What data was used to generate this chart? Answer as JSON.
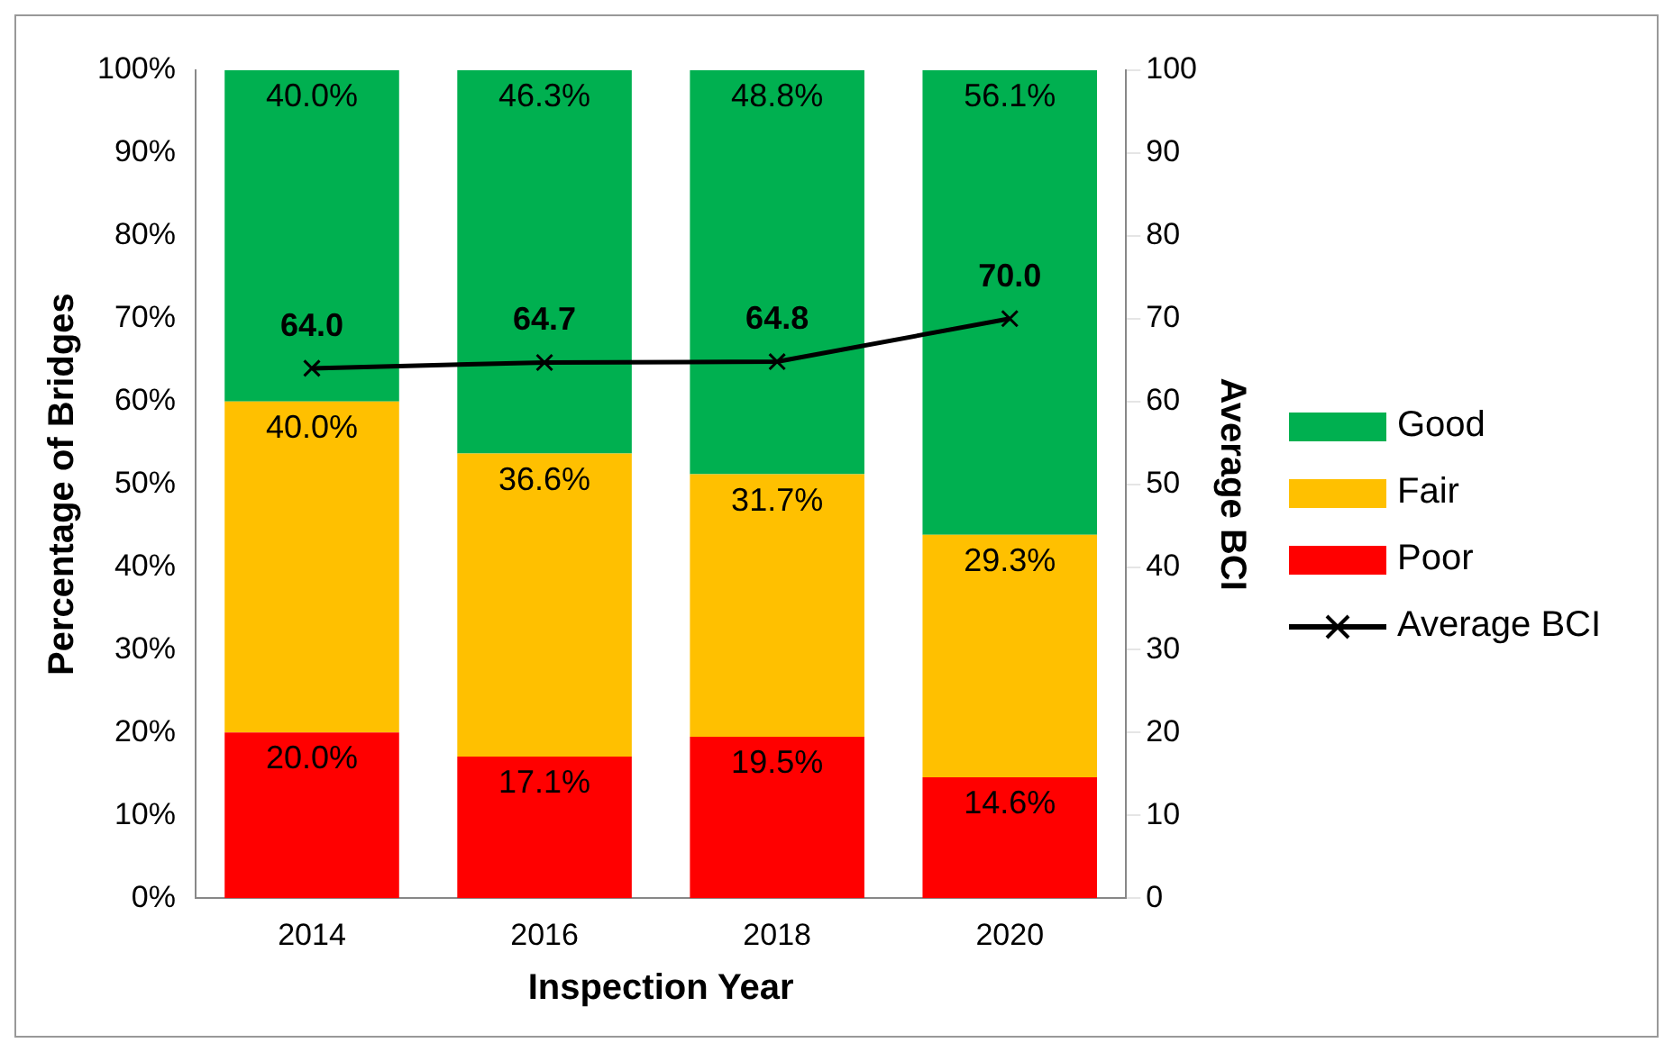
{
  "chart_data": {
    "type": "bar",
    "xlabel": "Inspection Year",
    "ylabel": "Percentage of Bridges",
    "y2label": "Average BCI",
    "categories": [
      "2014",
      "2016",
      "2018",
      "2020"
    ],
    "stacked": true,
    "grid": false,
    "legend": "right",
    "ylim": [
      0,
      100
    ],
    "yticks": [
      {
        "value": 0,
        "label": "0%"
      },
      {
        "value": 10,
        "label": "10%"
      },
      {
        "value": 20,
        "label": "20%"
      },
      {
        "value": 30,
        "label": "30%"
      },
      {
        "value": 40,
        "label": "40%"
      },
      {
        "value": 50,
        "label": "50%"
      },
      {
        "value": 60,
        "label": "60%"
      },
      {
        "value": 70,
        "label": "70%"
      },
      {
        "value": 80,
        "label": "80%"
      },
      {
        "value": 90,
        "label": "90%"
      },
      {
        "value": 100,
        "label": "100%"
      }
    ],
    "y2lim": [
      0,
      100
    ],
    "y2ticks": [
      0,
      10,
      20,
      30,
      40,
      50,
      60,
      70,
      80,
      90,
      100
    ],
    "series": [
      {
        "name": "Poor",
        "color": "#ff0000",
        "values": [
          20.0,
          17.1,
          19.5,
          14.6
        ],
        "value_labels": [
          "20.0%",
          "17.1%",
          "19.5%",
          "14.6%"
        ]
      },
      {
        "name": "Fair",
        "color": "#ffc000",
        "values": [
          40.0,
          36.6,
          31.7,
          29.3
        ],
        "value_labels": [
          "40.0%",
          "36.6%",
          "31.7%",
          "29.3%"
        ]
      },
      {
        "name": "Good",
        "color": "#00b050",
        "values": [
          40.0,
          46.3,
          48.8,
          56.1
        ],
        "value_labels": [
          "40.0%",
          "46.3%",
          "48.8%",
          "56.1%"
        ]
      },
      {
        "name": "Average BCI",
        "type": "line",
        "axis": "y2",
        "color": "#000000",
        "marker": "cross",
        "line_style": "solid",
        "values": [
          64.0,
          64.7,
          64.8,
          70.0
        ],
        "value_labels": [
          "64.0",
          "64.7",
          "64.8",
          "70.0"
        ]
      }
    ]
  }
}
